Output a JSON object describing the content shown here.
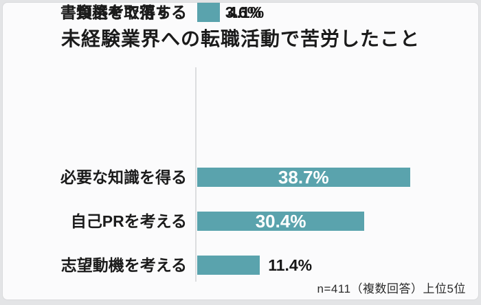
{
  "page": {
    "title": "未経験業界への転職活動で苦労したこと",
    "note": "n=411（複数回答）上位5位"
  },
  "chart_data": {
    "type": "bar",
    "orientation": "horizontal",
    "title": "未経験業界への転職活動で苦労したこと",
    "categories": [
      "必要な知識を得る",
      "自己PRを考える",
      "志望動機を考える",
      "資格を取得する",
      "書類選考で落ちる"
    ],
    "values": [
      38.7,
      30.4,
      11.4,
      4.1,
      3.6
    ],
    "display_values": [
      "38.7%",
      "30.4%",
      "11.4%",
      "4.1%",
      "3.6%"
    ],
    "unit": "%",
    "xlim": [
      0,
      40
    ],
    "grid": false,
    "legend": false,
    "value_label_position_rule": "inside bar if value >= 20, otherwise right of bar",
    "bar_color": "#5aa3ad",
    "inside_value_color": "#ffffff",
    "outside_value_color": "#161616",
    "axis_line_color": "#dcdddf",
    "note": "n=411（複数回答）上位5位"
  }
}
